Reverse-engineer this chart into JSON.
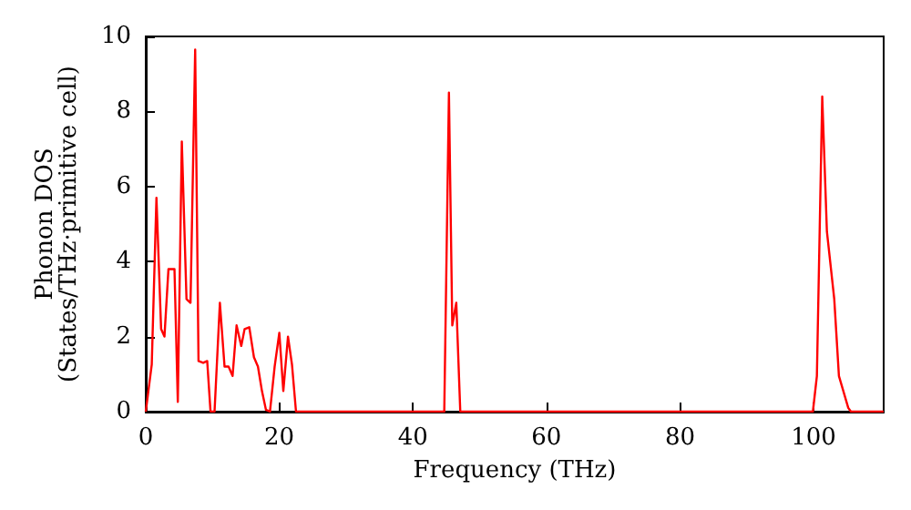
{
  "chart_data": {
    "type": "line",
    "xlabel": "Frequency (THz)",
    "ylabel": "Phonon DOS\n(States/THz·primitive cell)",
    "x": [
      0,
      0.9,
      1.6,
      2.3,
      2.8,
      3.4,
      4.3,
      4.8,
      5.4,
      6.1,
      6.7,
      7.4,
      7.9,
      8.6,
      9.2,
      9.7,
      10.3,
      11.1,
      11.8,
      12.4,
      13.0,
      13.6,
      14.3,
      14.8,
      15.5,
      16.2,
      16.8,
      17.4,
      18.0,
      18.6,
      19.3,
      20.0,
      20.6,
      21.3,
      21.9,
      22.5,
      44.7,
      45.4,
      45.9,
      46.5,
      47.1,
      99.9,
      100.5,
      101.3,
      102.0,
      103.1,
      103.8,
      105.2,
      105.6,
      110.5
    ],
    "series": [
      {
        "color": "#ff0000",
        "values": [
          0,
          1.26,
          5.7,
          2.2,
          2.0,
          3.8,
          3.8,
          0.26,
          7.2,
          3.0,
          2.9,
          9.65,
          1.35,
          1.3,
          1.35,
          0,
          0,
          2.9,
          1.2,
          1.2,
          0.95,
          2.3,
          1.75,
          2.2,
          2.25,
          1.45,
          1.2,
          0.55,
          0.05,
          0,
          1.2,
          2.1,
          0.55,
          2.0,
          1.25,
          0,
          0,
          8.5,
          2.3,
          2.9,
          0,
          0,
          0.95,
          8.4,
          4.8,
          3.0,
          0.95,
          0.1,
          0,
          0
        ]
      }
    ],
    "xlim": [
      0,
      110.5
    ],
    "xticks": [
      0,
      20,
      40,
      60,
      80,
      100
    ],
    "ylim": [
      0,
      10
    ],
    "yticks": [
      0,
      2,
      4,
      6,
      8,
      10
    ],
    "grid": false,
    "marker": "none",
    "line_style": "solid"
  }
}
